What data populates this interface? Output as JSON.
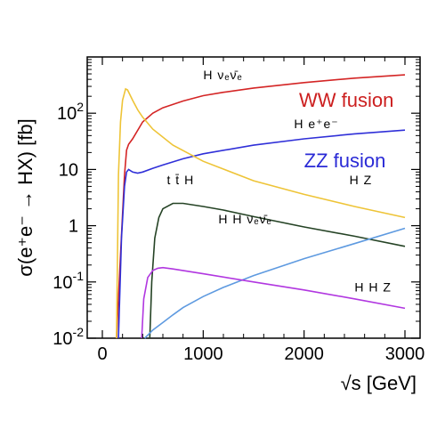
{
  "chart_data": {
    "type": "line",
    "title": "",
    "xlabel": "√s [GeV]",
    "ylabel": "σ(e⁺e⁻ → HX) [fb]",
    "xlim": [
      -150,
      3150
    ],
    "ylim": [
      0.01,
      1000
    ],
    "yscale": "log",
    "grid": false,
    "x_ticks": [
      {
        "value": 0,
        "label": "0"
      },
      {
        "value": 1000,
        "label": "1000"
      },
      {
        "value": 2000,
        "label": "2000"
      },
      {
        "value": 3000,
        "label": "3000"
      }
    ],
    "y_ticks": [
      {
        "value": 0.01,
        "base": "10",
        "exp": "-2"
      },
      {
        "value": 0.1,
        "base": "10",
        "exp": "-1"
      },
      {
        "value": 1,
        "base": "1",
        "exp": ""
      },
      {
        "value": 10,
        "base": "10",
        "exp": ""
      },
      {
        "value": 100,
        "base": "10",
        "exp": "2"
      }
    ],
    "annotations": [
      {
        "text": "WW fusion",
        "color": "#cc1f1f",
        "x": 1950,
        "y": 130
      },
      {
        "text": "ZZ fusion",
        "color": "#2a2ad6",
        "x": 2000,
        "y": 11
      }
    ],
    "series": [
      {
        "name": "H νₑν̄ₑ",
        "color": "#d42525",
        "label_pos": {
          "x": 1000,
          "y": 400
        },
        "points": [
          [
            140,
            0.01
          ],
          [
            180,
            0.3
          ],
          [
            220,
            8
          ],
          [
            240,
            22
          ],
          [
            260,
            28
          ],
          [
            300,
            35
          ],
          [
            400,
            70
          ],
          [
            500,
            100
          ],
          [
            600,
            125
          ],
          [
            800,
            165
          ],
          [
            1000,
            205
          ],
          [
            1200,
            235
          ],
          [
            1500,
            280
          ],
          [
            2000,
            350
          ],
          [
            2500,
            420
          ],
          [
            3000,
            480
          ]
        ]
      },
      {
        "name": "H e⁺e⁻",
        "color": "#2f2fd8",
        "label_pos": {
          "x": 1900,
          "y": 54
        },
        "points": [
          [
            160,
            0.01
          ],
          [
            190,
            0.6
          ],
          [
            220,
            5
          ],
          [
            240,
            9
          ],
          [
            260,
            10
          ],
          [
            300,
            9
          ],
          [
            350,
            8.6
          ],
          [
            400,
            9
          ],
          [
            500,
            10.5
          ],
          [
            600,
            12
          ],
          [
            800,
            15.5
          ],
          [
            1000,
            19
          ],
          [
            1500,
            27
          ],
          [
            2000,
            35
          ],
          [
            2500,
            43
          ],
          [
            3000,
            50
          ]
        ]
      },
      {
        "name": "H Z",
        "color": "#eec437",
        "label_pos": {
          "x": 2450,
          "y": 5.5
        },
        "points": [
          [
            140,
            0.01
          ],
          [
            160,
            8
          ],
          [
            180,
            70
          ],
          [
            200,
            170
          ],
          [
            230,
            270
          ],
          [
            250,
            260
          ],
          [
            300,
            170
          ],
          [
            350,
            115
          ],
          [
            400,
            85
          ],
          [
            500,
            52
          ],
          [
            700,
            27
          ],
          [
            1000,
            14
          ],
          [
            1500,
            6.3
          ],
          [
            2000,
            3.6
          ],
          [
            2500,
            2.2
          ],
          [
            3000,
            1.4
          ]
        ]
      },
      {
        "name": "t t̄ H",
        "color": "#254325",
        "label_pos": {
          "x": 640,
          "y": 5.5
        },
        "points": [
          [
            470,
            0.01
          ],
          [
            490,
            0.1
          ],
          [
            520,
            0.6
          ],
          [
            560,
            1.4
          ],
          [
            600,
            2.0
          ],
          [
            700,
            2.5
          ],
          [
            800,
            2.5
          ],
          [
            1000,
            2.2
          ],
          [
            1200,
            1.9
          ],
          [
            1500,
            1.45
          ],
          [
            2000,
            0.95
          ],
          [
            2500,
            0.65
          ],
          [
            3000,
            0.43
          ]
        ]
      },
      {
        "name": "H H νₑν̄ₑ",
        "color": "#5e9ae0",
        "label_pos": {
          "x": 1150,
          "y": 1.1
        },
        "points": [
          [
            420,
            0.01
          ],
          [
            500,
            0.014
          ],
          [
            600,
            0.019
          ],
          [
            700,
            0.026
          ],
          [
            800,
            0.035
          ],
          [
            1000,
            0.055
          ],
          [
            1200,
            0.08
          ],
          [
            1500,
            0.13
          ],
          [
            2000,
            0.26
          ],
          [
            2500,
            0.48
          ],
          [
            3000,
            0.9
          ]
        ]
      },
      {
        "name": "H H Z",
        "color": "#b137e0",
        "label_pos": {
          "x": 2500,
          "y": 0.068
        },
        "points": [
          [
            390,
            0.01
          ],
          [
            410,
            0.05
          ],
          [
            450,
            0.12
          ],
          [
            500,
            0.16
          ],
          [
            550,
            0.175
          ],
          [
            600,
            0.18
          ],
          [
            700,
            0.17
          ],
          [
            1000,
            0.14
          ],
          [
            1500,
            0.1
          ],
          [
            2000,
            0.072
          ],
          [
            2500,
            0.05
          ],
          [
            3000,
            0.034
          ]
        ]
      }
    ]
  }
}
